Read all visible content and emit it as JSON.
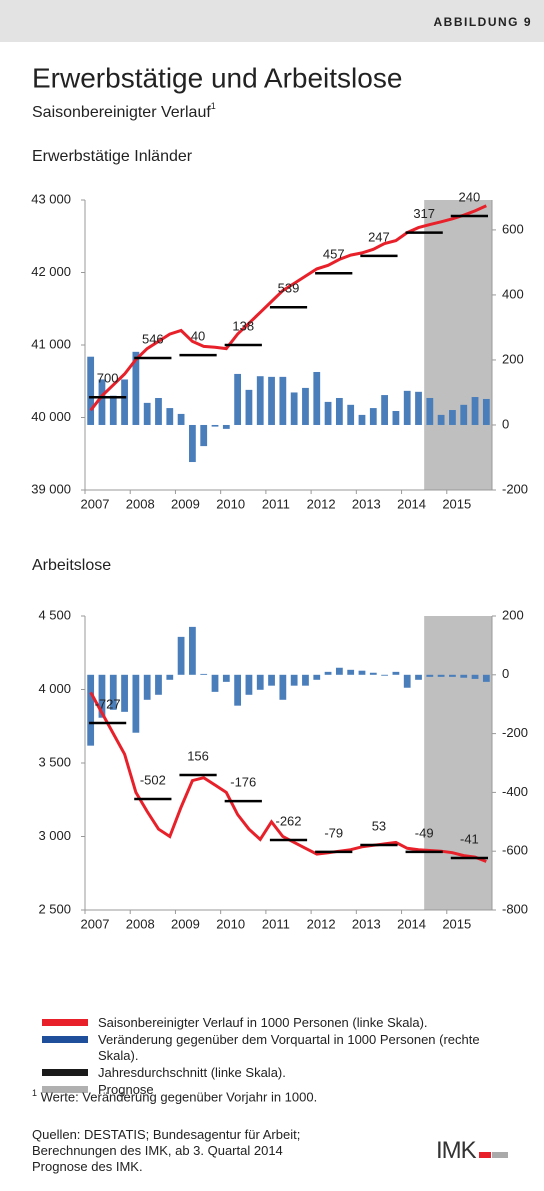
{
  "header": "ABBILDUNG 9",
  "title": "Erwerbstätige und Arbeitslose",
  "subtitle": "Saisonbereinigter Verlauf",
  "subtitle_sup": "1",
  "chart_data": [
    {
      "type": "combo",
      "title": "Erwerbstätige Inländer",
      "categories": [
        "2007",
        null,
        null,
        null,
        "2008",
        null,
        null,
        null,
        "2009",
        null,
        null,
        null,
        "2010",
        null,
        null,
        null,
        "2011",
        null,
        null,
        null,
        "2012",
        null,
        null,
        null,
        "2013",
        null,
        null,
        null,
        "2014",
        null,
        null,
        null,
        "2015",
        null,
        null,
        null
      ],
      "series": [
        {
          "kind": "bar",
          "axis": "y2",
          "color": "#4a7ebb",
          "values": [
            210,
            140,
            90,
            140,
            225,
            68,
            83,
            52,
            34,
            -114,
            -65,
            -5,
            -12,
            157,
            108,
            150,
            148,
            148,
            100,
            114,
            163,
            71,
            83,
            62,
            31,
            52,
            92,
            43,
            105,
            102,
            83,
            31,
            46,
            62,
            86,
            80
          ]
        },
        {
          "kind": "line",
          "color": "#e8202a",
          "values": [
            40100,
            40300,
            40450,
            40600,
            40800,
            40950,
            41050,
            41150,
            41200,
            41050,
            40980,
            40970,
            40950,
            41150,
            41300,
            41450,
            41600,
            41750,
            41850,
            41950,
            42050,
            42100,
            42180,
            42240,
            42270,
            42320,
            42400,
            42440,
            42550,
            42620,
            42660,
            42700,
            42740,
            42790,
            42850,
            42920
          ]
        }
      ],
      "annual": {
        "color": "#000000",
        "values": [
          40280,
          40820,
          40860,
          41000,
          41520,
          41990,
          42230,
          42550,
          42780
        ],
        "labels": [
          700,
          546,
          40,
          138,
          539,
          457,
          247,
          317,
          240
        ]
      },
      "ylim": [
        39000,
        43000
      ],
      "yticks": [
        {
          "value": 39000,
          "label": "39 000"
        },
        {
          "value": 40000,
          "label": "40 000"
        },
        {
          "value": 41000,
          "label": "41 000"
        },
        {
          "value": 42000,
          "label": "42 000"
        },
        {
          "value": 43000,
          "label": "43 000"
        }
      ],
      "y2lim": [
        -200,
        692
      ],
      "y2ticks": [
        -200,
        0,
        200,
        400,
        600
      ],
      "forecast_start": 30,
      "forecast_color": "#bfbfbf"
    },
    {
      "type": "combo",
      "title": "Arbeitslose",
      "categories": [
        "2007",
        null,
        null,
        null,
        "2008",
        null,
        null,
        null,
        "2009",
        null,
        null,
        null,
        "2010",
        null,
        null,
        null,
        "2011",
        null,
        null,
        null,
        "2012",
        null,
        null,
        null,
        "2013",
        null,
        null,
        null,
        "2014",
        null,
        null,
        null,
        "2015",
        null,
        null,
        null
      ],
      "series": [
        {
          "kind": "bar",
          "axis": "y2",
          "color": "#4a7ebb",
          "values": [
            -241,
            -146,
            -119,
            -126,
            -197,
            -85,
            -68,
            -17,
            129,
            163,
            3,
            -58,
            -24,
            -105,
            -68,
            -51,
            -37,
            -85,
            -37,
            -37,
            -17,
            10,
            24,
            17,
            14,
            7,
            -3,
            10,
            -44,
            -17,
            -7,
            -7,
            -7,
            -10,
            -14,
            -24
          ]
        },
        {
          "kind": "line",
          "color": "#e8202a",
          "values": [
            3980,
            3840,
            3700,
            3560,
            3300,
            3170,
            3050,
            3000,
            3200,
            3380,
            3400,
            3350,
            3300,
            3150,
            3050,
            2980,
            3100,
            3000,
            2960,
            2920,
            2880,
            2890,
            2900,
            2910,
            2930,
            2940,
            2950,
            2960,
            2920,
            2910,
            2905,
            2900,
            2890,
            2870,
            2860,
            2830
          ]
        }
      ],
      "annual": {
        "color": "#000000",
        "values": [
          3772,
          3255,
          3418,
          3241,
          2976,
          2895,
          2942,
          2895,
          2854
        ],
        "labels": [
          -727,
          -502,
          156,
          -176,
          -262,
          -79,
          53,
          -49,
          -41
        ]
      },
      "ylim": [
        2500,
        4500
      ],
      "yticks": [
        {
          "value": 2500,
          "label": "2 500"
        },
        {
          "value": 3000,
          "label": "3 000"
        },
        {
          "value": 3500,
          "label": "3 500"
        },
        {
          "value": 4000,
          "label": "4 000"
        },
        {
          "value": 4500,
          "label": "4 500"
        }
      ],
      "y2lim": [
        -800,
        200
      ],
      "y2ticks": [
        -800,
        -600,
        -400,
        -200,
        0,
        200
      ],
      "forecast_start": 30,
      "forecast_color": "#bfbfbf"
    }
  ],
  "legend": [
    {
      "label": "Saisonbereinigter Verlauf in 1000 Personen (linke Skala).",
      "color": "#e8202a"
    },
    {
      "label": "Veränderung gegenüber dem Vorquartal in 1000 Personen (rechte Skala).",
      "color": "#1f4e9a"
    },
    {
      "label": "Jahresdurchschnitt (linke Skala).",
      "color": "#1a1a1a"
    },
    {
      "label": "Prognose",
      "color": "#b0b0b0"
    }
  ],
  "footnote_mark": "1",
  "footnote": "Werte: Veränderung gegenüber Vorjahr in 1000.",
  "sources": [
    "Quellen: DESTATIS; Bundesagentur für Arbeit;",
    "Berechnungen des IMK, ab 3. Quartal 2014",
    "Prognose des IMK."
  ],
  "logo": "IMK"
}
